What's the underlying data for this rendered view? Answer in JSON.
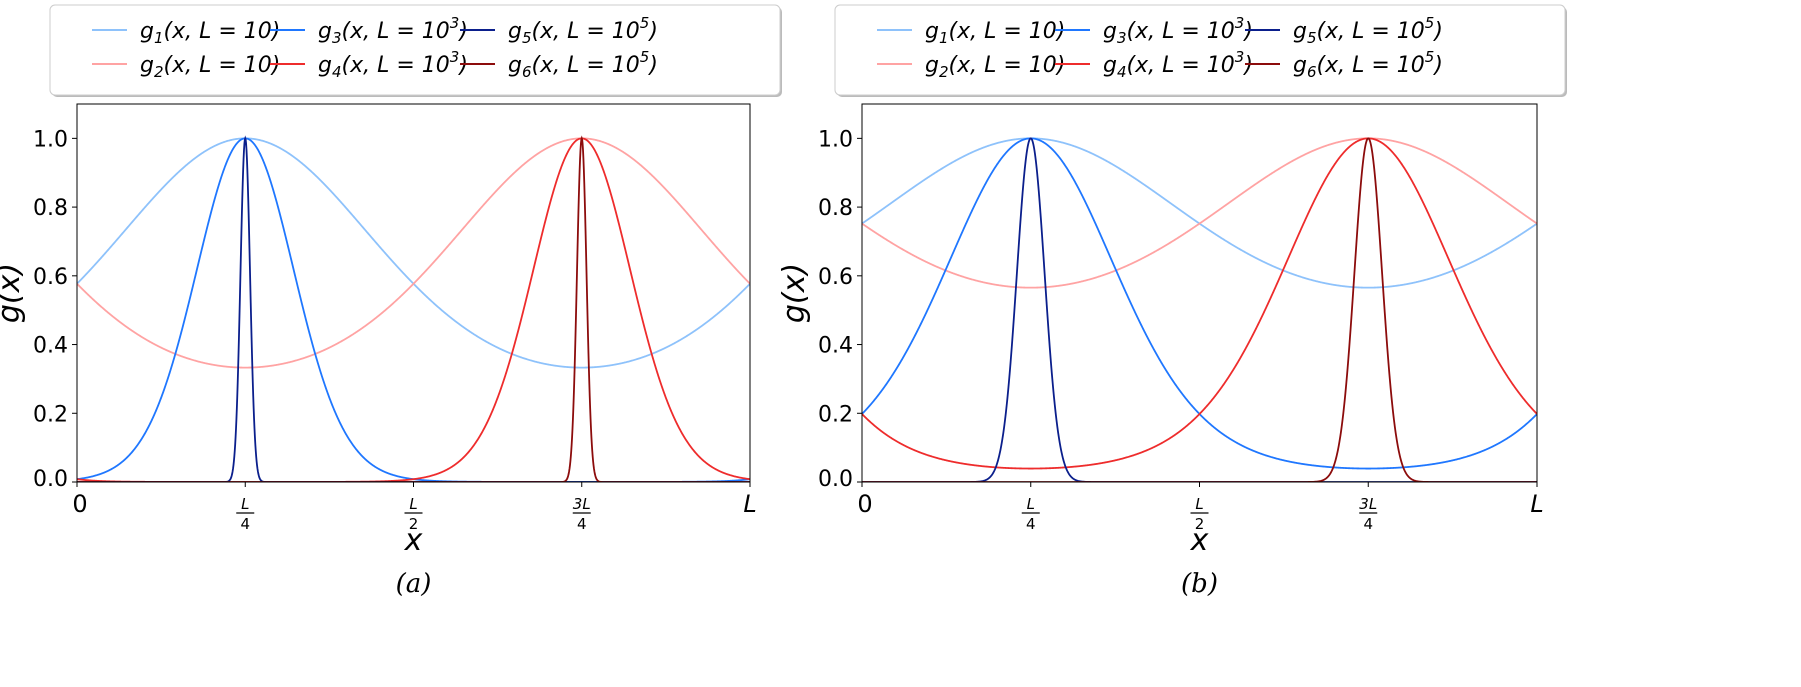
{
  "chart_data": [
    {
      "type": "line",
      "caption": "(a)",
      "xlabel": "x",
      "ylabel": "g(x)",
      "xlim": [
        0,
        1
      ],
      "ylim": [
        0,
        1.1
      ],
      "x_unit": "L",
      "yticks": [
        "0.0",
        "0.2",
        "0.4",
        "0.6",
        "0.8",
        "1.0"
      ],
      "xticks": [
        {
          "value": 0,
          "text": "0"
        },
        {
          "value": 0.25,
          "num": "L",
          "den": "4"
        },
        {
          "value": 0.5,
          "num": "L",
          "den": "2"
        },
        {
          "value": 0.75,
          "num": "3L",
          "den": "4"
        },
        {
          "value": 1,
          "text": "L"
        }
      ],
      "legend_position": "top-outside",
      "series": [
        {
          "fn": "g",
          "idx": "1",
          "pre": "(x, L = 10",
          "exp": "",
          "post": ")",
          "color": "#8ec2fb",
          "center": 0.25,
          "k": 0.55,
          "min_value": 0.33,
          "value_at_0": 0.57
        },
        {
          "fn": "g",
          "idx": "2",
          "pre": "(x, L = 10",
          "exp": "",
          "post": ")",
          "color": "#ffa3a3",
          "center": 0.75,
          "k": 0.55,
          "min_value": 0.33,
          "value_at_0": 0.57
        },
        {
          "fn": "g",
          "idx": "3",
          "pre": "(x, L = 10",
          "exp": "3",
          "post": ")",
          "color": "#1f77ff",
          "center": 0.25,
          "k": 4.8,
          "min_value": 0.0,
          "value_at_0": 0.01
        },
        {
          "fn": "g",
          "idx": "4",
          "pre": "(x, L = 10",
          "exp": "3",
          "post": ")",
          "color": "#ee2c2c",
          "center": 0.75,
          "k": 4.8,
          "min_value": 0.0,
          "value_at_0": 0.0
        },
        {
          "fn": "g",
          "idx": "5",
          "pre": "(x, L = 10",
          "exp": "5",
          "post": ")",
          "color": "#0b1f8c",
          "center": 0.25,
          "k": 500,
          "min_value": 0.0,
          "value_at_0": 0.0
        },
        {
          "fn": "g",
          "idx": "6",
          "pre": "(x, L = 10",
          "exp": "5",
          "post": ")",
          "color": "#8c0c0c",
          "center": 0.75,
          "k": 500,
          "min_value": 0.0,
          "value_at_0": 0.0
        }
      ]
    },
    {
      "type": "line",
      "caption": "(b)",
      "xlabel": "x",
      "ylabel": "g(x)",
      "xlim": [
        0,
        1
      ],
      "ylim": [
        0,
        1.1
      ],
      "x_unit": "L",
      "yticks": [
        "0.0",
        "0.2",
        "0.4",
        "0.6",
        "0.8",
        "1.0"
      ],
      "xticks": [
        {
          "value": 0,
          "text": "0"
        },
        {
          "value": 0.25,
          "num": "L",
          "den": "4"
        },
        {
          "value": 0.5,
          "num": "L",
          "den": "2"
        },
        {
          "value": 0.75,
          "num": "3L",
          "den": "4"
        },
        {
          "value": 1,
          "text": "L"
        }
      ],
      "legend_position": "top-outside",
      "series": [
        {
          "fn": "g",
          "idx": "1",
          "pre": "(x, L = 10",
          "exp": "",
          "post": ")",
          "color": "#8ec2fb",
          "center": 0.25,
          "k": 0.285,
          "min_value": 0.565,
          "value_at_0": 0.75
        },
        {
          "fn": "g",
          "idx": "2",
          "pre": "(x, L = 10",
          "exp": "",
          "post": ")",
          "color": "#ffa3a3",
          "center": 0.75,
          "k": 0.285,
          "min_value": 0.565,
          "value_at_0": 0.75
        },
        {
          "fn": "g",
          "idx": "3",
          "pre": "(x, L = 10",
          "exp": "3",
          "post": ")",
          "color": "#1f77ff",
          "center": 0.25,
          "k": 1.62,
          "min_value": 0.04,
          "value_at_0": 0.2
        },
        {
          "fn": "g",
          "idx": "4",
          "pre": "(x, L = 10",
          "exp": "3",
          "post": ")",
          "color": "#ee2c2c",
          "center": 0.75,
          "k": 1.62,
          "min_value": 0.04,
          "value_at_0": 0.2
        },
        {
          "fn": "g",
          "idx": "5",
          "pre": "(x, L = 10",
          "exp": "5",
          "post": ")",
          "color": "#0b1f8c",
          "center": 0.25,
          "k": 60,
          "min_value": 0.0,
          "value_at_0": 0.0
        },
        {
          "fn": "g",
          "idx": "6",
          "pre": "(x, L = 10",
          "exp": "5",
          "post": ")",
          "color": "#8c0c0c",
          "center": 0.75,
          "k": 60,
          "min_value": 0.0,
          "value_at_0": 0.0
        }
      ]
    }
  ]
}
